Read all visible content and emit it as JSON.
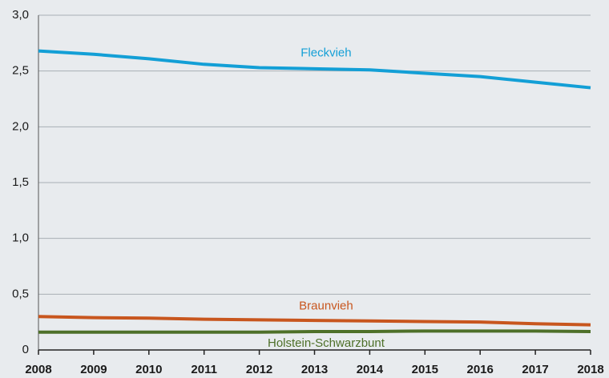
{
  "chart_data": {
    "type": "line",
    "x": [
      2008,
      2009,
      2010,
      2011,
      2012,
      2013,
      2014,
      2015,
      2016,
      2017,
      2018
    ],
    "series": [
      {
        "name": "Fleckvieh",
        "color": "#139fd6",
        "values": [
          2.68,
          2.65,
          2.61,
          2.56,
          2.53,
          2.52,
          2.51,
          2.48,
          2.45,
          2.4,
          2.35
        ]
      },
      {
        "name": "Braunvieh",
        "color": "#c8561e",
        "values": [
          0.3,
          0.29,
          0.285,
          0.275,
          0.27,
          0.265,
          0.26,
          0.255,
          0.25,
          0.235,
          0.225
        ]
      },
      {
        "name": "Holstein-Schwarzbunt",
        "color": "#4e7029",
        "values": [
          0.16,
          0.16,
          0.16,
          0.16,
          0.16,
          0.165,
          0.165,
          0.17,
          0.17,
          0.17,
          0.165
        ]
      }
    ],
    "ylim": [
      0,
      3.0
    ],
    "yticks": [
      0,
      {
        "value": 0.5,
        "label": "0,5"
      },
      {
        "value": 1.0,
        "label": "1,0"
      },
      {
        "value": 1.5,
        "label": "1,5"
      },
      {
        "value": 2.0,
        "label": "2,0"
      },
      {
        "value": 2.5,
        "label": "2,5"
      },
      {
        "value": 3.0,
        "label": "3,0"
      }
    ],
    "xlim": [
      2008,
      2018
    ],
    "grid": true
  }
}
